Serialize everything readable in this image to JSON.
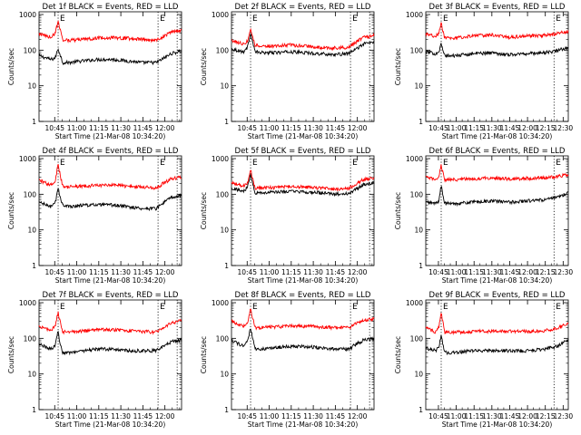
{
  "figure": {
    "ylabel": "Counts/sec",
    "xlabel": "Start Time (21-Mar-08 10:34:20)",
    "x_tick_labels": [
      "10:45",
      "11:00",
      "11:15",
      "11:30",
      "11:45",
      "12:00"
    ],
    "x_tick_labels_wide": [
      "10:45",
      "11:00",
      "11:15",
      "11:30",
      "11:45",
      "12:00",
      "12:15",
      "12:30"
    ],
    "y_tick_labels": [
      "1",
      "10",
      "100",
      "1000"
    ],
    "marker_label": "E",
    "colors": {
      "events": "#000000",
      "lld": "#ff0000",
      "axes": "#000000",
      "background": "#ffffff"
    }
  },
  "chart_data": [
    {
      "type": "line",
      "title": "Det 1f BLACK = Events, RED = LLD",
      "xlabel": "Start Time (21-Mar-08 10:34:20)",
      "ylabel": "Counts/sec",
      "x_units": "minutes after 10:34:20",
      "xlim": [
        0,
        97
      ],
      "ylim": [
        1,
        1000
      ],
      "yscale": "log",
      "dotted_lines": [
        13,
        81,
        94
      ],
      "series": [
        {
          "name": "Events",
          "color": "#000000",
          "x": [
            0,
            8,
            11,
            13,
            14,
            16,
            20,
            30,
            40,
            50,
            60,
            70,
            80,
            85,
            90,
            97
          ],
          "values": [
            70,
            55,
            60,
            110,
            85,
            45,
            45,
            50,
            55,
            55,
            50,
            45,
            45,
            60,
            80,
            95
          ]
        },
        {
          "name": "LLD",
          "color": "#ff0000",
          "x": [
            0,
            8,
            11,
            13,
            14,
            16,
            20,
            30,
            40,
            50,
            60,
            70,
            80,
            85,
            90,
            97
          ],
          "values": [
            290,
            230,
            300,
            650,
            450,
            200,
            190,
            200,
            220,
            225,
            215,
            200,
            190,
            250,
            320,
            360
          ]
        }
      ]
    },
    {
      "type": "line",
      "title": "Det 2f BLACK = Events, RED = LLD",
      "xlabel": "Start Time (21-Mar-08 10:34:20)",
      "ylabel": "Counts/sec",
      "x_units": "minutes after 10:34:20",
      "xlim": [
        0,
        97
      ],
      "ylim": [
        1,
        1000
      ],
      "yscale": "log",
      "dotted_lines": [
        13,
        81,
        94
      ],
      "series": [
        {
          "name": "Events",
          "color": "#000000",
          "x": [
            0,
            8,
            11,
            13,
            14,
            16,
            20,
            30,
            40,
            50,
            60,
            70,
            80,
            85,
            90,
            97
          ],
          "values": [
            110,
            90,
            120,
            320,
            200,
            90,
            85,
            85,
            90,
            85,
            80,
            75,
            80,
            110,
            150,
            170
          ]
        },
        {
          "name": "LLD",
          "color": "#ff0000",
          "x": [
            0,
            8,
            11,
            13,
            14,
            16,
            20,
            30,
            40,
            50,
            60,
            70,
            80,
            85,
            90,
            97
          ],
          "values": [
            190,
            150,
            180,
            420,
            280,
            140,
            130,
            130,
            140,
            130,
            120,
            115,
            120,
            170,
            230,
            260
          ]
        }
      ]
    },
    {
      "type": "line",
      "title": "Det 3f BLACK = Events, RED = LLD",
      "xlabel": "Start Time (21-Mar-08 10:34:20)",
      "ylabel": "Counts/sec",
      "x_units": "minutes after 10:34:20",
      "xlim": [
        0,
        120
      ],
      "ylim": [
        1,
        1000
      ],
      "yscale": "log",
      "dotted_lines": [
        13,
        108
      ],
      "series": [
        {
          "name": "Events",
          "color": "#000000",
          "x": [
            0,
            8,
            11,
            13,
            14,
            16,
            25,
            40,
            55,
            70,
            85,
            100,
            110,
            120
          ],
          "values": [
            90,
            80,
            90,
            150,
            110,
            70,
            70,
            80,
            85,
            75,
            80,
            85,
            95,
            120
          ]
        },
        {
          "name": "LLD",
          "color": "#ff0000",
          "x": [
            0,
            8,
            11,
            13,
            14,
            16,
            25,
            40,
            55,
            70,
            85,
            100,
            110,
            120
          ],
          "values": [
            280,
            240,
            300,
            600,
            400,
            220,
            220,
            250,
            270,
            230,
            250,
            260,
            290,
            340
          ]
        }
      ]
    },
    {
      "type": "line",
      "title": "Det 4f BLACK = Events, RED = LLD",
      "xlabel": "Start Time (21-Mar-08 10:34:20)",
      "ylabel": "Counts/sec",
      "x_units": "minutes after 10:34:20",
      "xlim": [
        0,
        97
      ],
      "ylim": [
        1,
        1000
      ],
      "yscale": "log",
      "dotted_lines": [
        13,
        81,
        94
      ],
      "series": [
        {
          "name": "Events",
          "color": "#000000",
          "x": [
            0,
            8,
            11,
            13,
            14,
            16,
            20,
            30,
            40,
            50,
            60,
            70,
            80,
            85,
            90,
            97
          ],
          "values": [
            60,
            45,
            55,
            150,
            100,
            50,
            45,
            50,
            50,
            50,
            45,
            40,
            40,
            60,
            80,
            90
          ]
        },
        {
          "name": "LLD",
          "color": "#ff0000",
          "x": [
            0,
            8,
            11,
            13,
            14,
            16,
            20,
            30,
            40,
            50,
            60,
            70,
            80,
            85,
            90,
            97
          ],
          "values": [
            250,
            180,
            230,
            700,
            420,
            170,
            160,
            170,
            180,
            180,
            170,
            160,
            150,
            210,
            270,
            300
          ]
        }
      ]
    },
    {
      "type": "line",
      "title": "Det 5f BLACK = Events, RED = LLD",
      "xlabel": "Start Time (21-Mar-08 10:34:20)",
      "ylabel": "Counts/sec",
      "x_units": "minutes after 10:34:20",
      "xlim": [
        0,
        97
      ],
      "ylim": [
        1,
        1000
      ],
      "yscale": "log",
      "dotted_lines": [
        13,
        81,
        94
      ],
      "series": [
        {
          "name": "Events",
          "color": "#000000",
          "x": [
            0,
            8,
            11,
            13,
            14,
            16,
            20,
            30,
            40,
            50,
            60,
            70,
            80,
            85,
            90,
            97
          ],
          "values": [
            150,
            120,
            160,
            400,
            250,
            110,
            110,
            115,
            120,
            115,
            110,
            100,
            105,
            140,
            190,
            210
          ]
        },
        {
          "name": "LLD",
          "color": "#ff0000",
          "x": [
            0,
            8,
            11,
            13,
            14,
            16,
            20,
            30,
            40,
            50,
            60,
            70,
            80,
            85,
            90,
            97
          ],
          "values": [
            210,
            170,
            210,
            500,
            320,
            150,
            150,
            155,
            165,
            160,
            150,
            140,
            145,
            200,
            260,
            290
          ]
        }
      ]
    },
    {
      "type": "line",
      "title": "Det 6f BLACK = Events, RED = LLD",
      "xlabel": "Start Time (21-Mar-08 10:34:20)",
      "ylabel": "Counts/sec",
      "x_units": "minutes after 10:34:20",
      "xlim": [
        0,
        120
      ],
      "ylim": [
        1,
        1000
      ],
      "yscale": "log",
      "dotted_lines": [
        13,
        108
      ],
      "series": [
        {
          "name": "Events",
          "color": "#000000",
          "x": [
            0,
            8,
            11,
            13,
            14,
            16,
            25,
            40,
            55,
            70,
            85,
            100,
            110,
            120
          ],
          "values": [
            60,
            55,
            65,
            180,
            110,
            55,
            55,
            60,
            65,
            60,
            65,
            70,
            80,
            110
          ]
        },
        {
          "name": "LLD",
          "color": "#ff0000",
          "x": [
            0,
            8,
            11,
            13,
            14,
            16,
            25,
            40,
            55,
            70,
            85,
            100,
            110,
            120
          ],
          "values": [
            300,
            260,
            320,
            650,
            450,
            260,
            260,
            270,
            290,
            270,
            280,
            290,
            310,
            360
          ]
        }
      ]
    },
    {
      "type": "line",
      "title": "Det 7f BLACK = Events, RED = LLD",
      "xlabel": "Start Time (21-Mar-08 10:34:20)",
      "ylabel": "Counts/sec",
      "x_units": "minutes after 10:34:20",
      "xlim": [
        0,
        97
      ],
      "ylim": [
        1,
        1000
      ],
      "yscale": "log",
      "dotted_lines": [
        13,
        81,
        94
      ],
      "series": [
        {
          "name": "Events",
          "color": "#000000",
          "x": [
            0,
            8,
            11,
            13,
            14,
            16,
            20,
            30,
            40,
            50,
            60,
            70,
            80,
            85,
            90,
            97
          ],
          "values": [
            70,
            50,
            60,
            160,
            90,
            40,
            40,
            45,
            50,
            50,
            45,
            45,
            45,
            60,
            80,
            90
          ]
        },
        {
          "name": "LLD",
          "color": "#ff0000",
          "x": [
            0,
            8,
            11,
            13,
            14,
            16,
            20,
            30,
            40,
            50,
            60,
            70,
            80,
            85,
            90,
            97
          ],
          "values": [
            220,
            160,
            220,
            560,
            350,
            150,
            150,
            160,
            175,
            175,
            165,
            155,
            150,
            200,
            270,
            310
          ]
        }
      ]
    },
    {
      "type": "line",
      "title": "Det 8f BLACK = Events, RED = LLD",
      "xlabel": "Start Time (21-Mar-08 10:34:20)",
      "ylabel": "Counts/sec",
      "x_units": "minutes after 10:34:20",
      "xlim": [
        0,
        97
      ],
      "ylim": [
        1,
        1000
      ],
      "yscale": "log",
      "dotted_lines": [
        13,
        81,
        94
      ],
      "series": [
        {
          "name": "Events",
          "color": "#000000",
          "x": [
            0,
            8,
            11,
            13,
            14,
            16,
            20,
            30,
            40,
            50,
            60,
            70,
            80,
            85,
            90,
            97
          ],
          "values": [
            90,
            60,
            80,
            200,
            120,
            50,
            50,
            55,
            60,
            60,
            55,
            50,
            50,
            70,
            90,
            100
          ]
        },
        {
          "name": "LLD",
          "color": "#ff0000",
          "x": [
            0,
            8,
            11,
            13,
            14,
            16,
            20,
            30,
            40,
            50,
            60,
            70,
            80,
            85,
            90,
            97
          ],
          "values": [
            300,
            220,
            280,
            700,
            450,
            200,
            200,
            210,
            220,
            220,
            210,
            200,
            200,
            260,
            320,
            350
          ]
        }
      ]
    },
    {
      "type": "line",
      "title": "Det 9f BLACK = Events, RED = LLD",
      "xlabel": "Start Time (21-Mar-08 10:34:20)",
      "ylabel": "Counts/sec",
      "x_units": "minutes after 10:34:20",
      "xlim": [
        0,
        120
      ],
      "ylim": [
        1,
        1000
      ],
      "yscale": "log",
      "dotted_lines": [
        13,
        108
      ],
      "series": [
        {
          "name": "Events",
          "color": "#000000",
          "x": [
            0,
            8,
            11,
            13,
            14,
            16,
            25,
            40,
            55,
            70,
            85,
            100,
            110,
            120
          ],
          "values": [
            55,
            45,
            55,
            130,
            80,
            40,
            40,
            45,
            45,
            45,
            45,
            50,
            60,
            90
          ]
        },
        {
          "name": "LLD",
          "color": "#ff0000",
          "x": [
            0,
            8,
            11,
            13,
            14,
            16,
            25,
            40,
            55,
            70,
            85,
            100,
            110,
            120
          ],
          "values": [
            200,
            150,
            200,
            550,
            330,
            150,
            150,
            155,
            160,
            160,
            155,
            165,
            190,
            260
          ]
        }
      ]
    }
  ]
}
